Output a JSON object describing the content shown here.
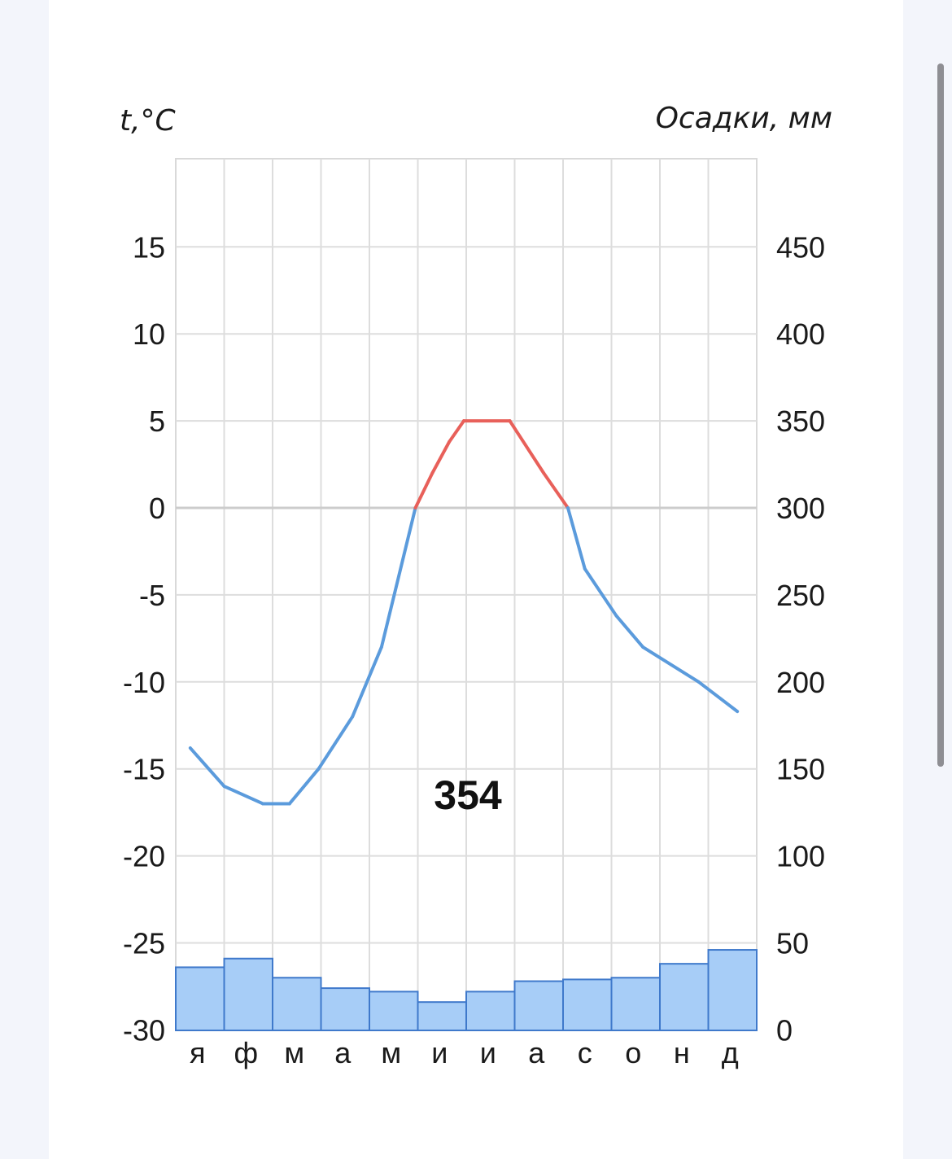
{
  "chart_data": {
    "type": "climatogram",
    "y_left_label": "t,°C",
    "y_right_label": "Осадки, мм",
    "y_left_ticks": [
      "15",
      "10",
      "5",
      "0",
      "-5",
      "-10",
      "-15",
      "-20",
      "-25",
      "-30"
    ],
    "y_right_ticks": [
      "450",
      "400",
      "350",
      "300",
      "250",
      "200",
      "150",
      "100",
      "50",
      "0"
    ],
    "y_left_range": [
      -30,
      20
    ],
    "y_right_range": [
      0,
      500
    ],
    "months": [
      "я",
      "ф",
      "м",
      "а",
      "м",
      "и",
      "и",
      "а",
      "с",
      "о",
      "н",
      "д"
    ],
    "temperature_series": {
      "x": [
        0.3,
        1.0,
        1.8,
        2.35,
        2.95,
        3.65,
        4.25,
        4.95,
        5.3,
        5.65,
        5.95,
        6.9,
        7.6,
        8.1,
        8.45,
        9.1,
        9.65,
        10.8,
        11.6
      ],
      "y": [
        -13.8,
        -16,
        -17,
        -17,
        -15,
        -12,
        -8,
        0,
        2,
        3.8,
        5,
        5,
        2,
        0,
        -3.5,
        -6.2,
        -8,
        -10,
        -11.7
      ]
    },
    "temperature_colors": {
      "above_zero": "#e8605a",
      "below_zero": "#5b9bdc"
    },
    "precipitation_mm": [
      36,
      41,
      30,
      24,
      22,
      16,
      22,
      28,
      29,
      30,
      38,
      46
    ],
    "precipitation_colors": {
      "fill": "#a7cdf7",
      "stroke": "#3f79cb"
    },
    "total_precipitation": "354",
    "grid": true
  }
}
